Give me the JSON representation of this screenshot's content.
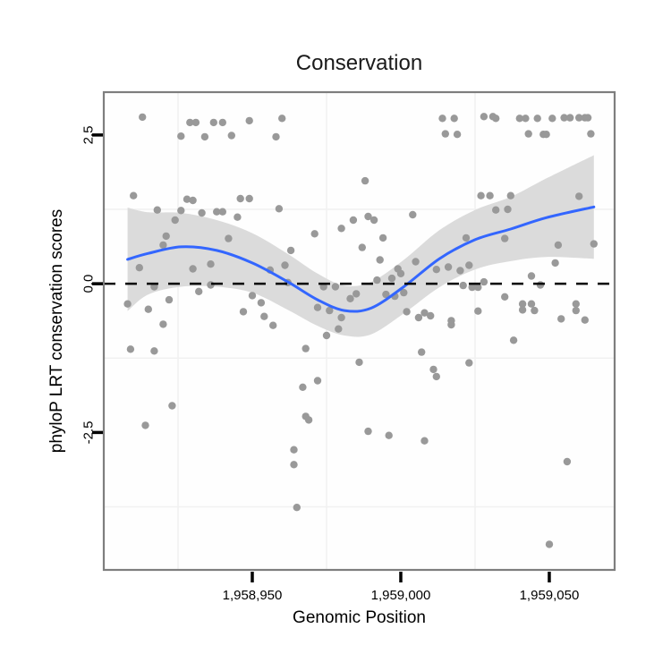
{
  "title": "Conservation",
  "chart_data": {
    "type": "scatter",
    "title": "Conservation",
    "xlabel": "Genomic Position",
    "ylabel": "phyloP LRT conservation scores",
    "xlim": [
      1958900,
      1959072
    ],
    "ylim": [
      -4.81,
      3.22
    ],
    "x_ticks": [
      1958950,
      1959000,
      1959050
    ],
    "x_tick_labels": [
      "1,958,950",
      "1,959,000",
      "1,959,050"
    ],
    "y_ticks": [
      2.5,
      0.0,
      -2.5
    ],
    "y_tick_labels": [
      "2.5",
      "0.0",
      "-2.5"
    ],
    "minor_grid_x": [
      1958925,
      1958975,
      1959025
    ],
    "minor_grid_y": [
      1.25,
      -1.25,
      -3.75
    ],
    "hline_y": 0,
    "legend": "none",
    "colors": {
      "point": "#999999",
      "line": "#3366FF",
      "ribbon": "#DBDBDB",
      "hline": "#000000",
      "grid": "#F1F1F1",
      "panel_bg": "#FEFEFE",
      "panel_border": "#7E7E7E"
    },
    "points": [
      [
        1958913,
        2.8
      ],
      [
        1958929,
        2.71
      ],
      [
        1958931,
        2.71
      ],
      [
        1958937,
        2.71
      ],
      [
        1958940,
        2.71
      ],
      [
        1958926,
        2.48
      ],
      [
        1958934,
        2.47
      ],
      [
        1958943,
        2.49
      ],
      [
        1958958,
        2.47
      ],
      [
        1958949,
        2.74
      ],
      [
        1958960,
        2.78
      ],
      [
        1958910,
        1.48
      ],
      [
        1958928,
        1.42
      ],
      [
        1958930,
        1.4
      ],
      [
        1958918,
        1.24
      ],
      [
        1958926,
        1.23
      ],
      [
        1958933,
        1.19
      ],
      [
        1958938,
        1.21
      ],
      [
        1958940,
        1.21
      ],
      [
        1958945,
        1.12
      ],
      [
        1958924,
        1.07
      ],
      [
        1958921,
        0.8
      ],
      [
        1958920,
        0.65
      ],
      [
        1958942,
        0.76
      ],
      [
        1958912,
        0.27
      ],
      [
        1958930,
        0.25
      ],
      [
        1958936,
        0.33
      ],
      [
        1958908,
        -0.34
      ],
      [
        1958915,
        -0.43
      ],
      [
        1958922,
        -0.27
      ],
      [
        1958917,
        -0.05
      ],
      [
        1958932,
        -0.13
      ],
      [
        1958936,
        -0.02
      ],
      [
        1958920,
        -0.68
      ],
      [
        1958988,
        1.73
      ],
      [
        1958946,
        1.43
      ],
      [
        1958949,
        1.43
      ],
      [
        1958959,
        1.26
      ],
      [
        1958971,
        0.84
      ],
      [
        1958980,
        0.93
      ],
      [
        1958984,
        1.07
      ],
      [
        1958987,
        0.61
      ],
      [
        1958963,
        0.56
      ],
      [
        1958961,
        0.31
      ],
      [
        1958956,
        0.23
      ],
      [
        1958962,
        0.02
      ],
      [
        1958974,
        -0.05
      ],
      [
        1958978,
        -0.05
      ],
      [
        1958950,
        -0.2
      ],
      [
        1958953,
        -0.32
      ],
      [
        1958954,
        -0.55
      ],
      [
        1958947,
        -0.47
      ],
      [
        1958957,
        -0.7
      ],
      [
        1958972,
        -0.4
      ],
      [
        1958976,
        -0.45
      ],
      [
        1958980,
        -0.57
      ],
      [
        1958983,
        -0.25
      ],
      [
        1958985,
        -0.17
      ],
      [
        1959014,
        2.78
      ],
      [
        1959018,
        2.78
      ],
      [
        1959028,
        2.81
      ],
      [
        1959031,
        2.81
      ],
      [
        1959015,
        2.52
      ],
      [
        1959019,
        2.51
      ],
      [
        1959027,
        1.48
      ],
      [
        1959030,
        1.48
      ],
      [
        1959032,
        1.24
      ],
      [
        1958989,
        1.13
      ],
      [
        1958991,
        1.07
      ],
      [
        1959004,
        1.16
      ],
      [
        1958994,
        0.77
      ],
      [
        1959022,
        0.77
      ],
      [
        1958993,
        0.4
      ],
      [
        1959005,
        0.37
      ],
      [
        1958999,
        0.25
      ],
      [
        1959000,
        0.17
      ],
      [
        1959012,
        0.24
      ],
      [
        1959016,
        0.28
      ],
      [
        1959020,
        0.22
      ],
      [
        1959023,
        0.31
      ],
      [
        1958997,
        0.09
      ],
      [
        1958992,
        0.06
      ],
      [
        1959001,
        -0.15
      ],
      [
        1958995,
        -0.18
      ],
      [
        1958998,
        -0.21
      ],
      [
        1959021,
        -0.03
      ],
      [
        1959024,
        -0.06
      ],
      [
        1959026,
        -0.06
      ],
      [
        1959028,
        0.03
      ],
      [
        1959002,
        -0.47
      ],
      [
        1959006,
        -0.57
      ],
      [
        1959008,
        -0.49
      ],
      [
        1959010,
        -0.54
      ],
      [
        1959017,
        -0.62
      ],
      [
        1959026,
        -0.46
      ],
      [
        1959032,
        2.78
      ],
      [
        1959040,
        2.78
      ],
      [
        1959042,
        2.78
      ],
      [
        1959046,
        2.78
      ],
      [
        1959051,
        2.78
      ],
      [
        1959055,
        2.79
      ],
      [
        1959057,
        2.79
      ],
      [
        1959060,
        2.79
      ],
      [
        1959062,
        2.79
      ],
      [
        1959063,
        2.79
      ],
      [
        1959043,
        2.52
      ],
      [
        1959048,
        2.51
      ],
      [
        1959049,
        2.51
      ],
      [
        1959064,
        2.52
      ],
      [
        1959037,
        1.48
      ],
      [
        1959060,
        1.47
      ],
      [
        1959036,
        1.25
      ],
      [
        1959035,
        0.76
      ],
      [
        1959053,
        0.65
      ],
      [
        1959065,
        0.67
      ],
      [
        1959052,
        0.35
      ],
      [
        1959044,
        0.13
      ],
      [
        1959047,
        -0.02
      ],
      [
        1959035,
        -0.22
      ],
      [
        1959041,
        -0.34
      ],
      [
        1959044,
        -0.34
      ],
      [
        1959059,
        -0.34
      ],
      [
        1959041,
        -0.44
      ],
      [
        1959045,
        -0.45
      ],
      [
        1959059,
        -0.45
      ],
      [
        1959054,
        -0.59
      ],
      [
        1959062,
        -0.61
      ],
      [
        1958909,
        -1.1
      ],
      [
        1958917,
        -1.13
      ],
      [
        1958923,
        -2.05
      ],
      [
        1958914,
        -2.38
      ],
      [
        1958975,
        -0.87
      ],
      [
        1958979,
        -0.76
      ],
      [
        1958968,
        -1.09
      ],
      [
        1958986,
        -1.32
      ],
      [
        1958972,
        -1.63
      ],
      [
        1958967,
        -1.74
      ],
      [
        1958968,
        -2.23
      ],
      [
        1958969,
        -2.29
      ],
      [
        1958989,
        -2.48
      ],
      [
        1958964,
        -2.79
      ],
      [
        1958964,
        -3.04
      ],
      [
        1958965,
        -3.76
      ],
      [
        1959017,
        -0.69
      ],
      [
        1959007,
        -1.15
      ],
      [
        1959023,
        -1.33
      ],
      [
        1959011,
        -1.44
      ],
      [
        1959012,
        -1.56
      ],
      [
        1958996,
        -2.55
      ],
      [
        1959008,
        -2.64
      ],
      [
        1959038,
        -0.95
      ],
      [
        1959056,
        -2.99
      ],
      [
        1959050,
        -4.38
      ]
    ],
    "smooth": {
      "x": [
        1958908,
        1958915,
        1958926,
        1958938,
        1958950,
        1958962,
        1958972,
        1958981,
        1958990,
        1959001,
        1959013,
        1959025,
        1959037,
        1959049,
        1959065
      ],
      "y": [
        0.41,
        0.51,
        0.62,
        0.56,
        0.35,
        0.03,
        -0.27,
        -0.45,
        -0.41,
        -0.05,
        0.42,
        0.74,
        0.92,
        1.11,
        1.29
      ],
      "ci_upper": [
        1.28,
        1.2,
        1.19,
        1.07,
        0.85,
        0.5,
        0.17,
        -0.03,
        0.03,
        0.4,
        0.9,
        1.24,
        1.46,
        1.77,
        2.16
      ],
      "ci_lower": [
        -0.46,
        -0.18,
        -0.05,
        -0.05,
        -0.15,
        -0.44,
        -0.71,
        -0.87,
        -0.85,
        -0.5,
        -0.06,
        0.24,
        0.38,
        0.45,
        0.42
      ]
    }
  }
}
